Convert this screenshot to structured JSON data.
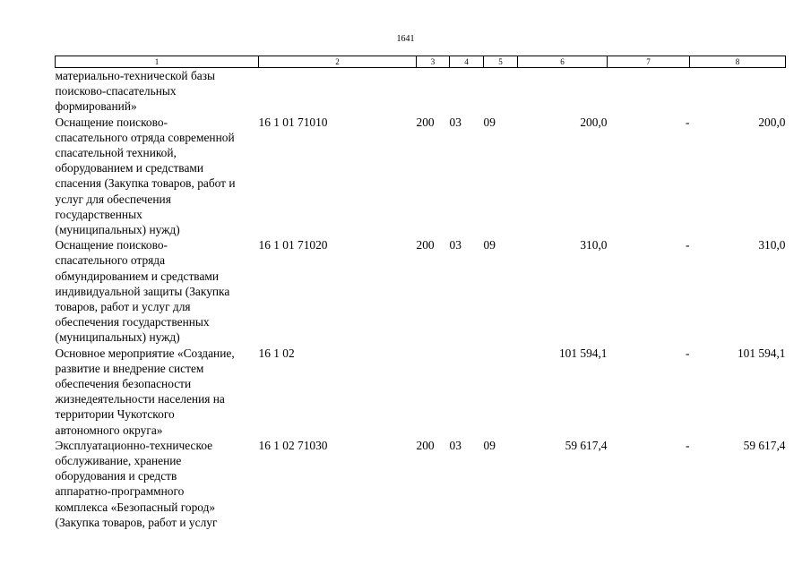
{
  "page": {
    "number": "1641"
  },
  "table": {
    "headers": [
      "1",
      "2",
      "3",
      "4",
      "5",
      "6",
      "7",
      "8"
    ],
    "rows": [
      {
        "name_lines": [
          "материально-технической базы",
          "поисково-спасательных",
          "формирований»"
        ],
        "code": "",
        "c3": "",
        "c4": "",
        "c5": "",
        "c6": "",
        "c7": "",
        "c8": ""
      },
      {
        "name_lines": [
          "Оснащение поисково-",
          "спасательного отряда современной",
          "спасательной техникой,",
          "оборудованием и средствами",
          "спасения (Закупка товаров, работ и",
          "услуг для обеспечения",
          "государственных",
          "(муниципальных) нужд)"
        ],
        "code": "16 1 01 71010",
        "c3": "200",
        "c4": "03",
        "c5": "09",
        "c6": "200,0",
        "c7": "-",
        "c8": "200,0"
      },
      {
        "name_lines": [
          "Оснащение поисково-",
          "спасательного отряда",
          "обмундированием и средствами",
          "индивидуальной защиты (Закупка",
          "товаров, работ и услуг для",
          "обеспечения государственных",
          "(муниципальных) нужд)"
        ],
        "code": "16 1 01 71020",
        "c3": "200",
        "c4": "03",
        "c5": "09",
        "c6": "310,0",
        "c7": "-",
        "c8": "310,0"
      },
      {
        "name_lines": [
          "Основное мероприятие «Создание,",
          "развитие и внедрение систем",
          "обеспечения безопасности",
          "жизнедеятельности населения на",
          "территории Чукотского",
          "автономного округа»"
        ],
        "code": "16 1 02",
        "c3": "",
        "c4": "",
        "c5": "",
        "c6": "101 594,1",
        "c7": "-",
        "c8": "101 594,1"
      },
      {
        "name_lines": [
          "Эксплуатационно-техническое",
          "обслуживание, хранение",
          "оборудования и средств",
          "аппаратно-программного",
          "комплекса «Безопасный город»",
          "(Закупка товаров, работ и услуг"
        ],
        "code": "16 1 02 71030",
        "c3": "200",
        "c4": "03",
        "c5": "09",
        "c6": "59 617,4",
        "c7": "-",
        "c8": "59 617,4"
      }
    ]
  }
}
